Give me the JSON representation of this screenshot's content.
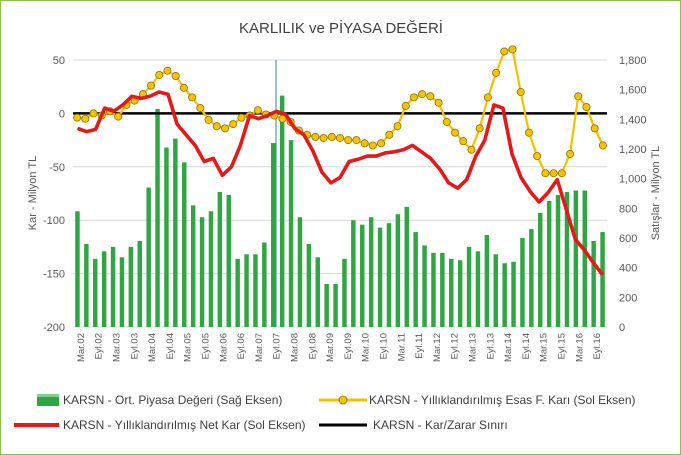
{
  "chart_data": {
    "type": "bar+line",
    "title": "KARLILIK ve PİYASA DEĞERİ",
    "y_left_label": "Kar - Milyon TL",
    "y_right_label": "Satışlar - Milyon TL",
    "y_left_range": [
      -200,
      50
    ],
    "y_right_range": [
      0,
      1800
    ],
    "y_left_ticks": [
      "50",
      "0",
      "-50",
      "-100",
      "-150",
      "-200"
    ],
    "y_right_ticks": [
      "1,800",
      "1,600",
      "1,400",
      "1,200",
      "1,000",
      "800",
      "600",
      "400",
      "200",
      "0"
    ],
    "x_tick_labels": [
      "Mar.02",
      "Eyl.02",
      "Mar.03",
      "Eyl.03",
      "Mar.04",
      "Eyl.04",
      "Mar.05",
      "Eyl.05",
      "Mar.06",
      "Eyl.06",
      "Mar.07",
      "Eyl.07",
      "Mar.08",
      "Eyl.08",
      "Mar.09",
      "Eyl.09",
      "Mar.10",
      "Eyl.10",
      "Mar.11",
      "Eyl.11",
      "Mar.12",
      "Eyl.12",
      "Mar.13",
      "Eyl.13",
      "Mar.14",
      "Eyl.14",
      "Mar.15",
      "Eyl.15",
      "Mar.16",
      "Eyl.16"
    ],
    "grid": "horizontal",
    "legend_position": "bottom",
    "colors": {
      "bars": "#2fa543",
      "esas_kar": "#f2c200",
      "esas_marker": "#f5c400",
      "net_kar": "#e41a1a",
      "threshold": "#000000",
      "frame": "#8fbf4f"
    },
    "series": [
      {
        "name": "KARSN - Ort. Piyasa Değeri (Sağ Eksen)",
        "axis": "right",
        "type": "bar",
        "values": [
          780,
          560,
          460,
          510,
          540,
          470,
          540,
          580,
          940,
          1470,
          1210,
          1270,
          1110,
          820,
          740,
          780,
          910,
          890,
          460,
          490,
          490,
          570,
          1240,
          1560,
          1260,
          740,
          560,
          470,
          290,
          290,
          460,
          720,
          690,
          740,
          670,
          700,
          760,
          810,
          640,
          550,
          500,
          500,
          460,
          450,
          540,
          510,
          620,
          490,
          430,
          440,
          600,
          660,
          770,
          850,
          890,
          910,
          920,
          920,
          580,
          640
        ]
      },
      {
        "name": "KARSN - Yıllıklandırılmış Esas F. Karı (Sol Eksen)",
        "axis": "left",
        "type": "line",
        "values": [
          -4,
          -5,
          0,
          -2,
          2,
          -3,
          8,
          12,
          18,
          26,
          36,
          40,
          35,
          24,
          15,
          5,
          -6,
          -12,
          -14,
          -10,
          -4,
          -2,
          3,
          -1,
          -2,
          -5,
          -8,
          -16,
          -20,
          -22,
          -23,
          -22,
          -23,
          -25,
          -25,
          -28,
          -30,
          -28,
          -20,
          -12,
          7,
          15,
          18,
          16,
          10,
          -8,
          -18,
          -26,
          -34,
          -14,
          15,
          38,
          58,
          60,
          20,
          -18,
          -40,
          -56,
          -56,
          -56,
          -38,
          16,
          6,
          -14,
          -30
        ]
      },
      {
        "name": "KARSN - Yıllıklandırılmış Net Kar (Sol Eksen)",
        "axis": "left",
        "type": "line",
        "values": [
          -14,
          -17,
          -15,
          5,
          2,
          8,
          16,
          14,
          16,
          20,
          18,
          -10,
          -20,
          -30,
          -45,
          -42,
          -58,
          -50,
          -30,
          -2,
          -5,
          -2,
          2,
          -1,
          -14,
          -20,
          -35,
          -55,
          -65,
          -60,
          -45,
          -43,
          -40,
          -40,
          -37,
          -36,
          -34,
          -30,
          -36,
          -42,
          -52,
          -65,
          -70,
          -62,
          -40,
          -25,
          8,
          5,
          -38,
          -60,
          -73,
          -83,
          -74,
          -62,
          -90,
          -118,
          -128,
          -140,
          -151
        ]
      },
      {
        "name": "KARSN - Kar/Zarar Sınırı",
        "axis": "left",
        "type": "line",
        "values": [
          0,
          0
        ]
      }
    ]
  }
}
